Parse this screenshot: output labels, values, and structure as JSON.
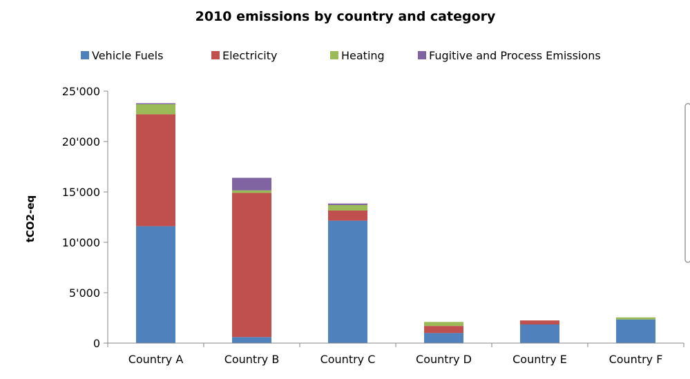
{
  "chart_data": {
    "type": "bar",
    "stacked": true,
    "title": "2010 emissions by country and category",
    "xlabel": "",
    "ylabel": "tCO2-eq",
    "categories": [
      "Country A",
      "Country B",
      "Country C",
      "Country D",
      "Country E",
      "Country F"
    ],
    "series": [
      {
        "name": "Vehicle Fuels",
        "color": "#4f81bd",
        "values": [
          11600,
          600,
          12150,
          1000,
          1850,
          2350
        ]
      },
      {
        "name": "Electricity",
        "color": "#c0504d",
        "values": [
          11100,
          14300,
          1000,
          700,
          400,
          0
        ]
      },
      {
        "name": "Heating",
        "color": "#9bbb59",
        "values": [
          1000,
          250,
          550,
          400,
          0,
          200
        ]
      },
      {
        "name": "Fugitive and Process Emissions",
        "color": "#8064a2",
        "values": [
          100,
          1250,
          150,
          0,
          0,
          0
        ]
      }
    ],
    "ylim": [
      0,
      25000
    ],
    "yticks": [
      0,
      5000,
      10000,
      15000,
      20000,
      25000
    ],
    "ytick_labels": [
      "0",
      "5'000",
      "10'000",
      "15'000",
      "20'000",
      "25'000"
    ],
    "grid": false,
    "legend_position": "top"
  }
}
